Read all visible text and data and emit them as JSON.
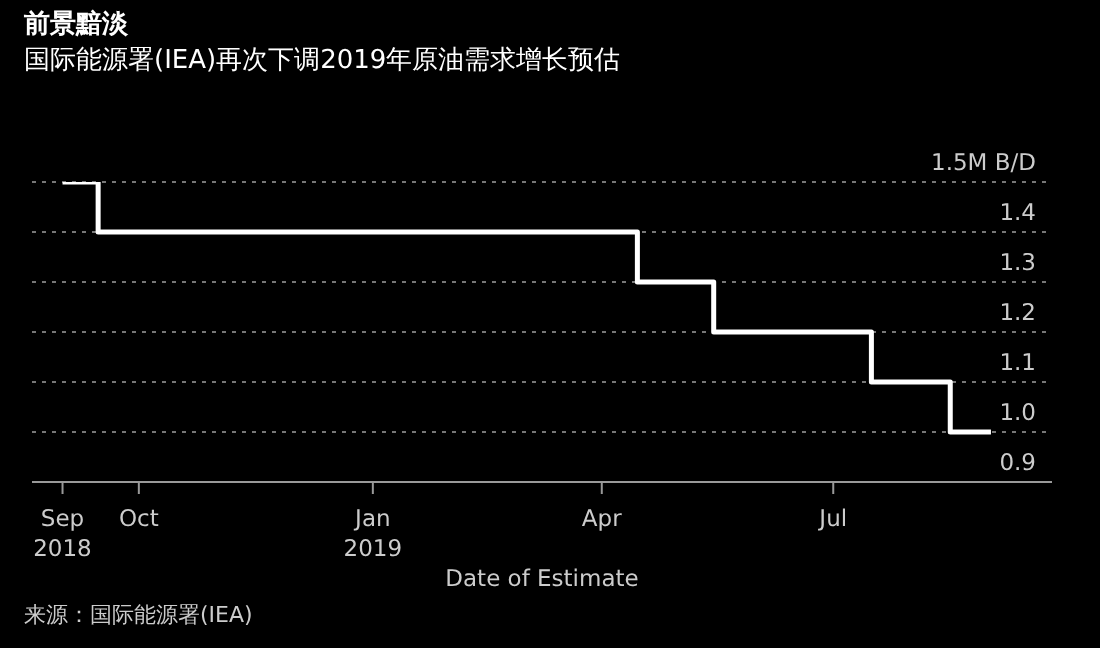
{
  "chart_data": {
    "type": "step",
    "title": "前景黯淡",
    "subtitle": "国际能源署(IEA)再次下调2019年原油需求增长预估",
    "xlabel": "Date of Estimate",
    "annotations": [
      "来源：国际能源署(IEA)"
    ],
    "x": [
      "2018-09-01",
      "2018-09-15",
      "2019-04-15",
      "2019-05-15",
      "2019-07-16",
      "2019-08-16",
      "2019-09-01"
    ],
    "series": [
      {
        "color": "#ffffff",
        "values": [
          1.5,
          1.4,
          1.3,
          1.2,
          1.1,
          1.0,
          1.0
        ]
      }
    ],
    "xlim": [
      "2018-08-20",
      "2019-09-25"
    ],
    "xticks": [
      {
        "value": "2018-09-01",
        "label": "Sep 2018"
      },
      {
        "value": "2018-10-01",
        "label": "Oct"
      },
      {
        "value": "2019-01-01",
        "label": "Jan 2019"
      },
      {
        "value": "2019-04-01",
        "label": "Apr"
      },
      {
        "value": "2019-07-01",
        "label": "Jul"
      }
    ],
    "ylim": [
      0.9,
      1.5
    ],
    "yticks": [
      0.9,
      {
        "value": 1.0,
        "label": "1.0"
      },
      1.1,
      1.2,
      1.3,
      1.4,
      {
        "value": 1.5,
        "label": "1.5M B/D"
      }
    ],
    "grid": "y",
    "marker": "none",
    "line_style": "solid"
  }
}
